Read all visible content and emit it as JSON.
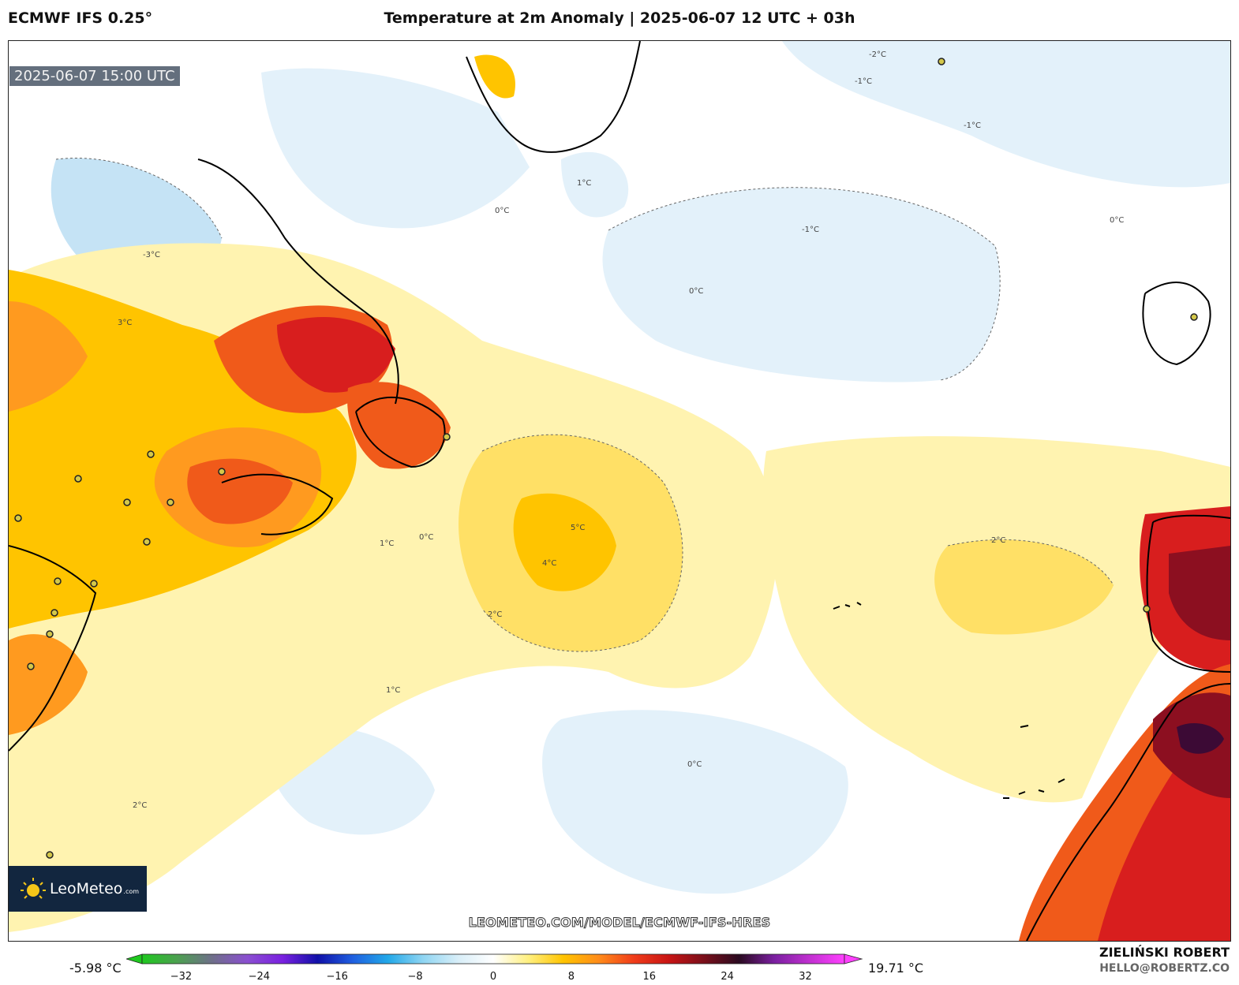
{
  "header": {
    "model": "ECMWF IFS 0.25°",
    "title": "Temperature at 2m Anomaly | 2025-06-07 12 UTC + 03h"
  },
  "map": {
    "valid_time": "2025-06-07 15:00 UTC",
    "contour_labels": [
      "-3°C",
      "-2°C",
      "-1°C",
      "0°C",
      "1°C",
      "2°C",
      "3°C",
      "4°C",
      "5°C"
    ],
    "colors": {
      "ocean_neutral": "#ffffff",
      "cool_light": "#e3f1fa",
      "cool_mid": "#c5e3f5",
      "warm_1": "#fff3b0",
      "warm_2": "#ffe066",
      "warm_3": "#ffc400",
      "warm_4": "#ff9a1f",
      "warm_5": "#f05a1a",
      "warm_6": "#d81e1e",
      "hot_7": "#8c0f20",
      "hot_8": "#3c0a35"
    }
  },
  "branding": {
    "logo_text": "LeoMeteo",
    "logo_suffix": ".com",
    "watermark": "LEOMETEO.COM/MODEL/ECMWF-IFS-HRES",
    "author": "ZIELIŃSKI ROBERT",
    "email": "HELLO@ROBERTZ.CO"
  },
  "colorbar": {
    "min_value": "-5.98 °C",
    "max_value": "19.71 °C",
    "ticks": [
      "−32",
      "−24",
      "−16",
      "−8",
      "0",
      "8",
      "16",
      "24",
      "32"
    ],
    "range": [
      -32,
      32
    ],
    "stops": [
      "#1fc81f",
      "#4ca050",
      "#6f6f8a",
      "#8a4fd0",
      "#7a20e0",
      "#1010a8",
      "#1f5fe0",
      "#22a8e8",
      "#8fd5f2",
      "#d8eef8",
      "#ffffff",
      "#fff080",
      "#ffc400",
      "#ff8c1a",
      "#f03c1a",
      "#c81414",
      "#7a0f1a",
      "#2a0a20",
      "#7a1fa0",
      "#c030d0",
      "#ff40ff"
    ]
  }
}
